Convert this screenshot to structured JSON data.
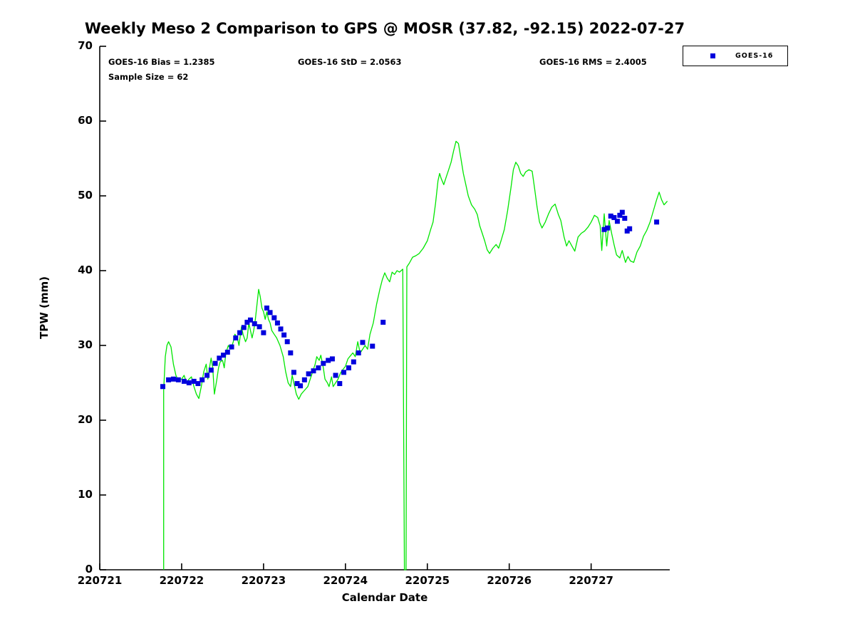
{
  "title": "Weekly Meso 2 Comparison to GPS @ MOSR (37.82, -92.15) 2022-07-27",
  "annotations": {
    "bias": "GOES-16 Bias = 1.2385",
    "std": "GOES-16 StD = 2.0563",
    "rms": "GOES-16 RMS = 2.4005",
    "sample_size": "Sample Size = 62"
  },
  "legend": {
    "entries": [
      {
        "label": "GOES-16",
        "marker": "square",
        "color": "#0000dd"
      }
    ]
  },
  "colors": {
    "gps_line": "#00e600",
    "goes16_marker": "#0000dd",
    "axis": "#000000",
    "background": "#ffffff"
  },
  "chart_data": {
    "type": "line",
    "title": "Weekly Meso 2 Comparison to GPS @ MOSR (37.82, -92.15) 2022-07-27",
    "xlabel": "Calendar Date",
    "ylabel": "TPW (mm)",
    "x_base": 220721,
    "xlim_offset": [
      0,
      6.96
    ],
    "ylim": [
      0,
      70
    ],
    "xticks": [
      220721,
      220722,
      220723,
      220724,
      220725,
      220726,
      220727
    ],
    "yticks": [
      0,
      10,
      20,
      30,
      40,
      50,
      60,
      70
    ],
    "grid": false,
    "legend_position": "top-right-outside",
    "series": [
      {
        "name": "GPS",
        "type": "line",
        "color": "#00e600",
        "points": [
          [
            0.78,
            0
          ],
          [
            0.78,
            24
          ],
          [
            0.8,
            28.5
          ],
          [
            0.82,
            30
          ],
          [
            0.84,
            30.5
          ],
          [
            0.87,
            29.8
          ],
          [
            0.9,
            27.5
          ],
          [
            0.93,
            26
          ],
          [
            0.96,
            25.3
          ],
          [
            1.0,
            25.5
          ],
          [
            1.03,
            26
          ],
          [
            1.06,
            25
          ],
          [
            1.09,
            25.5
          ],
          [
            1.12,
            25.8
          ],
          [
            1.15,
            24.5
          ],
          [
            1.18,
            23.5
          ],
          [
            1.21,
            22.9
          ],
          [
            1.24,
            24.5
          ],
          [
            1.27,
            26.5
          ],
          [
            1.3,
            27.5
          ],
          [
            1.32,
            25.5
          ],
          [
            1.34,
            27
          ],
          [
            1.36,
            28.3
          ],
          [
            1.38,
            27
          ],
          [
            1.4,
            23.5
          ],
          [
            1.43,
            25.5
          ],
          [
            1.45,
            27
          ],
          [
            1.47,
            27.8
          ],
          [
            1.5,
            28
          ],
          [
            1.52,
            27
          ],
          [
            1.54,
            29
          ],
          [
            1.57,
            30
          ],
          [
            1.6,
            29.5
          ],
          [
            1.63,
            30.5
          ],
          [
            1.65,
            31.5
          ],
          [
            1.68,
            31
          ],
          [
            1.7,
            30
          ],
          [
            1.73,
            32.5
          ],
          [
            1.75,
            31.5
          ],
          [
            1.78,
            30.5
          ],
          [
            1.8,
            31
          ],
          [
            1.82,
            33
          ],
          [
            1.84,
            32
          ],
          [
            1.86,
            31
          ],
          [
            1.88,
            32
          ],
          [
            1.9,
            33.5
          ],
          [
            1.92,
            35.5
          ],
          [
            1.94,
            37.5
          ],
          [
            1.96,
            36.5
          ],
          [
            1.98,
            35
          ],
          [
            2.0,
            34.5
          ],
          [
            2.02,
            33.5
          ],
          [
            2.04,
            34.5
          ],
          [
            2.06,
            33.5
          ],
          [
            2.08,
            33
          ],
          [
            2.1,
            32
          ],
          [
            2.13,
            31.5
          ],
          [
            2.16,
            31
          ],
          [
            2.2,
            30
          ],
          [
            2.24,
            28.5
          ],
          [
            2.27,
            26.5
          ],
          [
            2.3,
            25
          ],
          [
            2.33,
            24.5
          ],
          [
            2.35,
            26
          ],
          [
            2.37,
            25
          ],
          [
            2.4,
            23.5
          ],
          [
            2.43,
            22.8
          ],
          [
            2.46,
            23.5
          ],
          [
            2.5,
            24
          ],
          [
            2.54,
            24.5
          ],
          [
            2.57,
            25.5
          ],
          [
            2.6,
            26.5
          ],
          [
            2.63,
            27.5
          ],
          [
            2.65,
            28.5
          ],
          [
            2.68,
            28
          ],
          [
            2.7,
            28.7
          ],
          [
            2.73,
            27
          ],
          [
            2.75,
            25.5
          ],
          [
            2.78,
            25
          ],
          [
            2.8,
            24.5
          ],
          [
            2.83,
            25.8
          ],
          [
            2.85,
            24.5
          ],
          [
            2.88,
            25
          ],
          [
            2.91,
            25.5
          ],
          [
            2.94,
            26.3
          ],
          [
            2.97,
            26.8
          ],
          [
            3.0,
            27.2
          ],
          [
            3.03,
            28.2
          ],
          [
            3.06,
            28.6
          ],
          [
            3.09,
            29
          ],
          [
            3.12,
            28.5
          ],
          [
            3.15,
            30.5
          ],
          [
            3.18,
            29
          ],
          [
            3.21,
            29.5
          ],
          [
            3.24,
            30
          ],
          [
            3.27,
            29.5
          ],
          [
            3.3,
            31.5
          ],
          [
            3.34,
            33
          ],
          [
            3.38,
            35.5
          ],
          [
            3.42,
            37.5
          ],
          [
            3.45,
            38.8
          ],
          [
            3.48,
            39.7
          ],
          [
            3.51,
            39
          ],
          [
            3.54,
            38.5
          ],
          [
            3.57,
            39.8
          ],
          [
            3.6,
            39.5
          ],
          [
            3.63,
            40
          ],
          [
            3.66,
            39.8
          ],
          [
            3.7,
            40.2
          ],
          [
            3.72,
            0
          ],
          [
            3.74,
            0
          ],
          [
            3.75,
            40.5
          ],
          [
            3.78,
            41
          ],
          [
            3.82,
            41.8
          ],
          [
            3.86,
            42
          ],
          [
            3.9,
            42.3
          ],
          [
            3.95,
            43
          ],
          [
            4.0,
            44
          ],
          [
            4.04,
            45.5
          ],
          [
            4.07,
            46.5
          ],
          [
            4.1,
            49
          ],
          [
            4.13,
            52
          ],
          [
            4.15,
            53
          ],
          [
            4.17,
            52.3
          ],
          [
            4.2,
            51.5
          ],
          [
            4.23,
            52.5
          ],
          [
            4.26,
            53.5
          ],
          [
            4.29,
            54.5
          ],
          [
            4.32,
            56
          ],
          [
            4.35,
            57.3
          ],
          [
            4.38,
            57
          ],
          [
            4.41,
            55
          ],
          [
            4.44,
            53
          ],
          [
            4.47,
            51.5
          ],
          [
            4.5,
            50
          ],
          [
            4.54,
            48.8
          ],
          [
            4.58,
            48.2
          ],
          [
            4.61,
            47.5
          ],
          [
            4.64,
            46
          ],
          [
            4.67,
            45
          ],
          [
            4.7,
            44
          ],
          [
            4.73,
            42.8
          ],
          [
            4.76,
            42.3
          ],
          [
            4.8,
            43
          ],
          [
            4.84,
            43.5
          ],
          [
            4.87,
            43
          ],
          [
            4.9,
            44
          ],
          [
            4.94,
            45.5
          ],
          [
            4.98,
            48
          ],
          [
            5.02,
            51
          ],
          [
            5.05,
            53.5
          ],
          [
            5.08,
            54.5
          ],
          [
            5.11,
            54
          ],
          [
            5.14,
            53
          ],
          [
            5.17,
            52.6
          ],
          [
            5.2,
            53.2
          ],
          [
            5.24,
            53.5
          ],
          [
            5.28,
            53.3
          ],
          [
            5.31,
            51
          ],
          [
            5.34,
            48.5
          ],
          [
            5.37,
            46.5
          ],
          [
            5.4,
            45.7
          ],
          [
            5.44,
            46.5
          ],
          [
            5.48,
            47.6
          ],
          [
            5.52,
            48.5
          ],
          [
            5.56,
            48.9
          ],
          [
            5.6,
            47.5
          ],
          [
            5.63,
            46.7
          ],
          [
            5.67,
            44.5
          ],
          [
            5.7,
            43.3
          ],
          [
            5.73,
            44
          ],
          [
            5.77,
            43.2
          ],
          [
            5.8,
            42.6
          ],
          [
            5.84,
            44.5
          ],
          [
            5.88,
            45
          ],
          [
            5.92,
            45.3
          ],
          [
            5.96,
            45.8
          ],
          [
            6.0,
            46.5
          ],
          [
            6.04,
            47.4
          ],
          [
            6.08,
            47.1
          ],
          [
            6.11,
            46
          ],
          [
            6.13,
            42.7
          ],
          [
            6.16,
            47.6
          ],
          [
            6.19,
            43.3
          ],
          [
            6.22,
            46.7
          ],
          [
            6.25,
            45
          ],
          [
            6.28,
            43.5
          ],
          [
            6.31,
            42.1
          ],
          [
            6.35,
            41.7
          ],
          [
            6.38,
            42.7
          ],
          [
            6.42,
            41.1
          ],
          [
            6.45,
            41.9
          ],
          [
            6.48,
            41.3
          ],
          [
            6.52,
            41.1
          ],
          [
            6.56,
            42.5
          ],
          [
            6.6,
            43.3
          ],
          [
            6.64,
            44.6
          ],
          [
            6.68,
            45.4
          ],
          [
            6.72,
            46.5
          ],
          [
            6.76,
            48
          ],
          [
            6.8,
            49.5
          ],
          [
            6.83,
            50.5
          ],
          [
            6.86,
            49.5
          ],
          [
            6.89,
            48.8
          ],
          [
            6.93,
            49.3
          ]
        ]
      },
      {
        "name": "GOES-16",
        "type": "scatter",
        "color": "#0000dd",
        "points": [
          [
            0.77,
            24.5
          ],
          [
            0.84,
            25.4
          ],
          [
            0.9,
            25.5
          ],
          [
            0.96,
            25.4
          ],
          [
            1.03,
            25.2
          ],
          [
            1.09,
            25.0
          ],
          [
            1.15,
            25.2
          ],
          [
            1.2,
            24.9
          ],
          [
            1.25,
            25.4
          ],
          [
            1.31,
            26.0
          ],
          [
            1.36,
            26.7
          ],
          [
            1.41,
            27.6
          ],
          [
            1.46,
            28.3
          ],
          [
            1.51,
            28.7
          ],
          [
            1.56,
            29.1
          ],
          [
            1.61,
            29.8
          ],
          [
            1.66,
            31.0
          ],
          [
            1.71,
            31.7
          ],
          [
            1.76,
            32.4
          ],
          [
            1.8,
            33.1
          ],
          [
            1.84,
            33.4
          ],
          [
            1.89,
            32.9
          ],
          [
            1.95,
            32.5
          ],
          [
            2.0,
            31.7
          ],
          [
            2.04,
            35.0
          ],
          [
            2.08,
            34.4
          ],
          [
            2.13,
            33.7
          ],
          [
            2.17,
            33.0
          ],
          [
            2.21,
            32.2
          ],
          [
            2.25,
            31.4
          ],
          [
            2.29,
            30.5
          ],
          [
            2.33,
            29.0
          ],
          [
            2.37,
            26.4
          ],
          [
            2.41,
            24.9
          ],
          [
            2.45,
            24.6
          ],
          [
            2.5,
            25.4
          ],
          [
            2.55,
            26.2
          ],
          [
            2.61,
            26.6
          ],
          [
            2.67,
            27.0
          ],
          [
            2.73,
            27.6
          ],
          [
            2.79,
            28.0
          ],
          [
            2.84,
            28.2
          ],
          [
            2.88,
            26.0
          ],
          [
            2.93,
            24.9
          ],
          [
            2.98,
            26.4
          ],
          [
            3.04,
            27.0
          ],
          [
            3.1,
            27.8
          ],
          [
            3.16,
            29.0
          ],
          [
            3.21,
            30.4
          ],
          [
            3.33,
            29.9
          ],
          [
            3.46,
            33.1
          ],
          [
            6.16,
            45.5
          ],
          [
            6.2,
            45.7
          ],
          [
            6.24,
            47.3
          ],
          [
            6.28,
            47.1
          ],
          [
            6.32,
            46.6
          ],
          [
            6.35,
            47.4
          ],
          [
            6.38,
            47.8
          ],
          [
            6.41,
            47.0
          ],
          [
            6.44,
            45.3
          ],
          [
            6.47,
            45.6
          ],
          [
            6.8,
            46.5
          ]
        ]
      }
    ]
  }
}
